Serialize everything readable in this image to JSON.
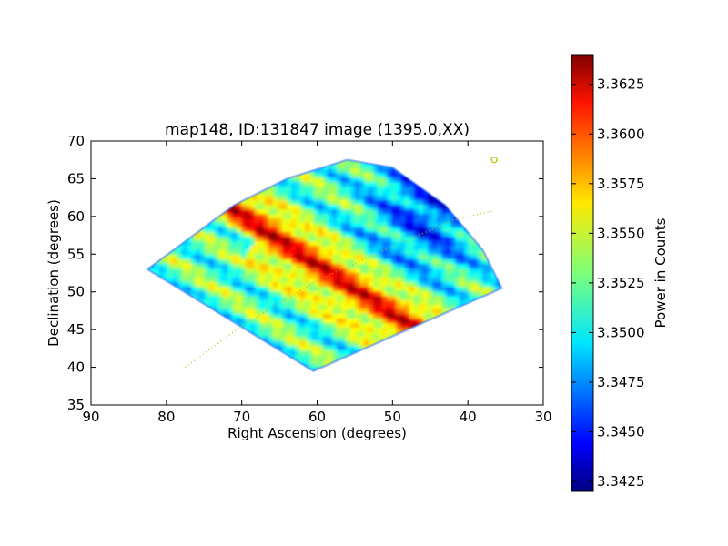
{
  "chart_data": {
    "type": "heatmap",
    "title": "map148, ID:131847 image (1395.0,XX)",
    "xlabel": "Right Ascension (degrees)",
    "ylabel": "Declination (degrees)",
    "xlim": [
      90,
      30
    ],
    "ylim": [
      35,
      70
    ],
    "x_ticks": [
      90,
      80,
      70,
      60,
      50,
      40,
      30
    ],
    "y_ticks": [
      35,
      40,
      45,
      50,
      55,
      60,
      65,
      70
    ],
    "grid": false,
    "region_outline": [
      [
        82.5,
        53.0
      ],
      [
        71,
        61.5
      ],
      [
        64,
        65.0
      ],
      [
        56,
        67.5
      ],
      [
        50,
        66.5
      ],
      [
        43,
        61.5
      ],
      [
        38,
        55.5
      ],
      [
        35.5,
        50.5
      ],
      [
        60.5,
        39.5
      ],
      [
        82.5,
        53.0
      ]
    ],
    "stripe_direction": "diagonal, descending from upper-left (high RA, high Dec) to lower-right",
    "hot_band": {
      "from": [
        71,
        61.5
      ],
      "to": [
        47,
        46.0
      ],
      "value_range": [
        3.3595,
        3.3625
      ]
    },
    "cold_region": {
      "location": "upper-right edge near RA 38-55, Dec 55-67",
      "value_range": [
        3.3445,
        3.349
      ]
    },
    "dotted_track": [
      [
        77.5,
        40.0
      ],
      [
        70,
        45.5
      ],
      [
        60,
        51.5
      ],
      [
        50,
        56.0
      ],
      [
        42,
        59.5
      ],
      [
        36.5,
        60.8
      ]
    ],
    "marker": {
      "ra": 36.5,
      "dec": 67.5,
      "shape": "open-circle",
      "color": "#bfbf00"
    },
    "colorbar": {
      "label": "Power in Counts",
      "min": 3.342,
      "max": 3.364,
      "ticks": [
        "3.3425",
        "3.3450",
        "3.3475",
        "3.3500",
        "3.3525",
        "3.3550",
        "3.3575",
        "3.3600",
        "3.3625"
      ],
      "colormap": "jet"
    }
  }
}
